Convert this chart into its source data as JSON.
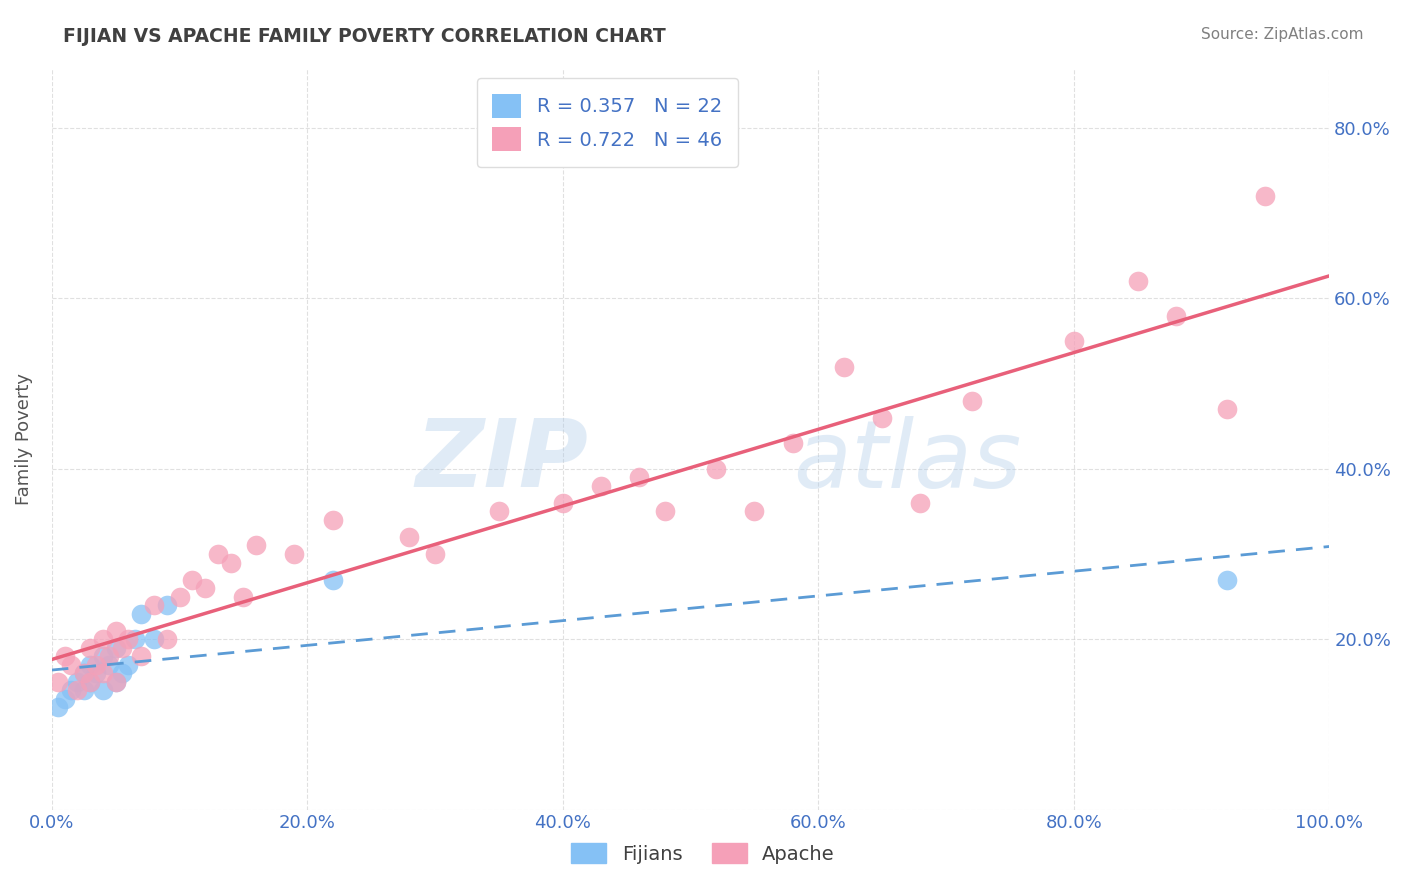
{
  "title": "FIJIAN VS APACHE FAMILY POVERTY CORRELATION CHART",
  "source": "Source: ZipAtlas.com",
  "ylabel": "Family Poverty",
  "fijian_color": "#85C1F5",
  "apache_color": "#F5A0B8",
  "fijian_line_color": "#5B9BD5",
  "apache_line_color": "#E8607A",
  "R_fijian": 0.357,
  "N_fijian": 22,
  "R_apache": 0.722,
  "N_apache": 46,
  "xlim": [
    0.0,
    1.0
  ],
  "ylim": [
    0.0,
    0.87
  ],
  "xticks": [
    0.0,
    0.2,
    0.4,
    0.6,
    0.8,
    1.0
  ],
  "yticks": [
    0.0,
    0.2,
    0.4,
    0.6,
    0.8
  ],
  "xticklabels": [
    "0.0%",
    "20.0%",
    "40.0%",
    "60.0%",
    "80.0%",
    "100.0%"
  ],
  "right_yticklabels": [
    "20.0%",
    "40.0%",
    "60.0%",
    "80.0%"
  ],
  "watermark_zip": "ZIP",
  "watermark_atlas": "atlas",
  "background_color": "#FFFFFF",
  "grid_color": "#CCCCCC",
  "tick_color": "#4472C4",
  "title_color": "#404040",
  "source_color": "#808080",
  "fijian_x": [
    0.005,
    0.01,
    0.015,
    0.02,
    0.025,
    0.025,
    0.03,
    0.03,
    0.035,
    0.04,
    0.04,
    0.045,
    0.05,
    0.05,
    0.055,
    0.06,
    0.065,
    0.07,
    0.08,
    0.09,
    0.22,
    0.92
  ],
  "fijian_y": [
    0.12,
    0.13,
    0.14,
    0.15,
    0.14,
    0.16,
    0.15,
    0.17,
    0.16,
    0.14,
    0.18,
    0.17,
    0.15,
    0.19,
    0.16,
    0.17,
    0.2,
    0.23,
    0.2,
    0.24,
    0.27,
    0.27
  ],
  "apache_x": [
    0.005,
    0.01,
    0.015,
    0.02,
    0.025,
    0.03,
    0.03,
    0.035,
    0.04,
    0.04,
    0.045,
    0.05,
    0.05,
    0.055,
    0.06,
    0.07,
    0.08,
    0.09,
    0.1,
    0.11,
    0.12,
    0.13,
    0.14,
    0.15,
    0.16,
    0.19,
    0.22,
    0.28,
    0.3,
    0.35,
    0.4,
    0.43,
    0.46,
    0.48,
    0.52,
    0.55,
    0.58,
    0.62,
    0.65,
    0.68,
    0.72,
    0.8,
    0.85,
    0.88,
    0.92,
    0.95
  ],
  "apache_y": [
    0.15,
    0.18,
    0.17,
    0.14,
    0.16,
    0.15,
    0.19,
    0.17,
    0.16,
    0.2,
    0.18,
    0.15,
    0.21,
    0.19,
    0.2,
    0.18,
    0.24,
    0.2,
    0.25,
    0.27,
    0.26,
    0.3,
    0.29,
    0.25,
    0.31,
    0.3,
    0.34,
    0.32,
    0.3,
    0.35,
    0.36,
    0.38,
    0.39,
    0.35,
    0.4,
    0.35,
    0.43,
    0.52,
    0.46,
    0.36,
    0.48,
    0.55,
    0.62,
    0.58,
    0.47,
    0.72
  ]
}
